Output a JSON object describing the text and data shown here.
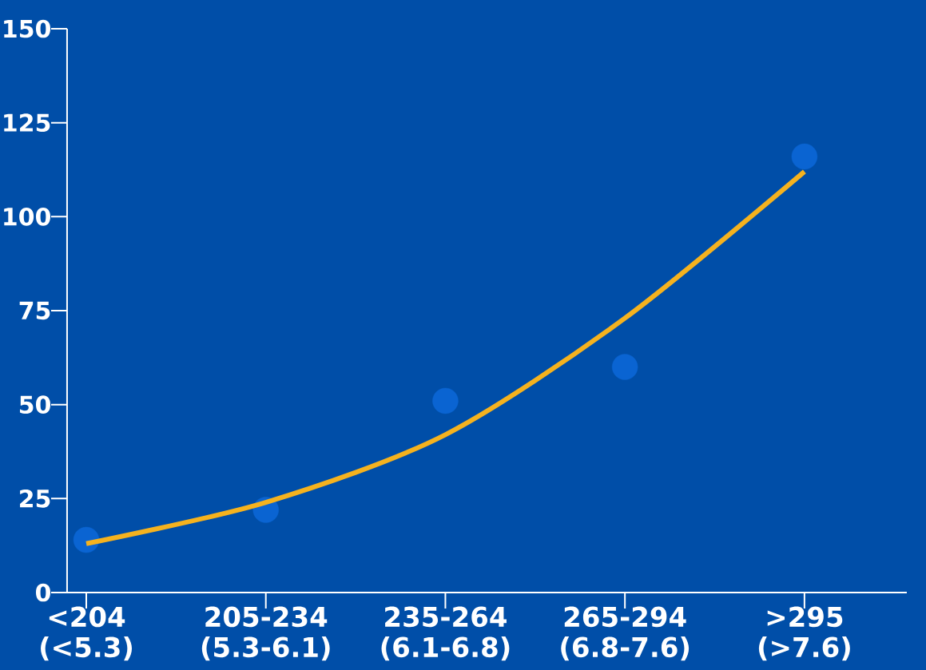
{
  "chart_data": {
    "type": "scatter",
    "categories": [
      "<204 (<5.3)",
      "205-234 (5.3-6.1)",
      "235-264 (6.1-6.8)",
      "265-294 (6.8-7.6)",
      ">295 (>7.6)"
    ],
    "series": [
      {
        "color": "#0a64d2",
        "marker": "circle",
        "values": [
          14,
          22,
          51,
          60,
          116
        ]
      },
      {
        "type": "line",
        "color": "#f5b21e",
        "marker": "none",
        "line_style": "solid",
        "values": [
          13,
          24,
          42,
          73,
          112
        ]
      }
    ],
    "ylim": [
      0,
      150
    ],
    "yticks": [
      0,
      25,
      50,
      75,
      100,
      125,
      150
    ],
    "grid": false
  }
}
